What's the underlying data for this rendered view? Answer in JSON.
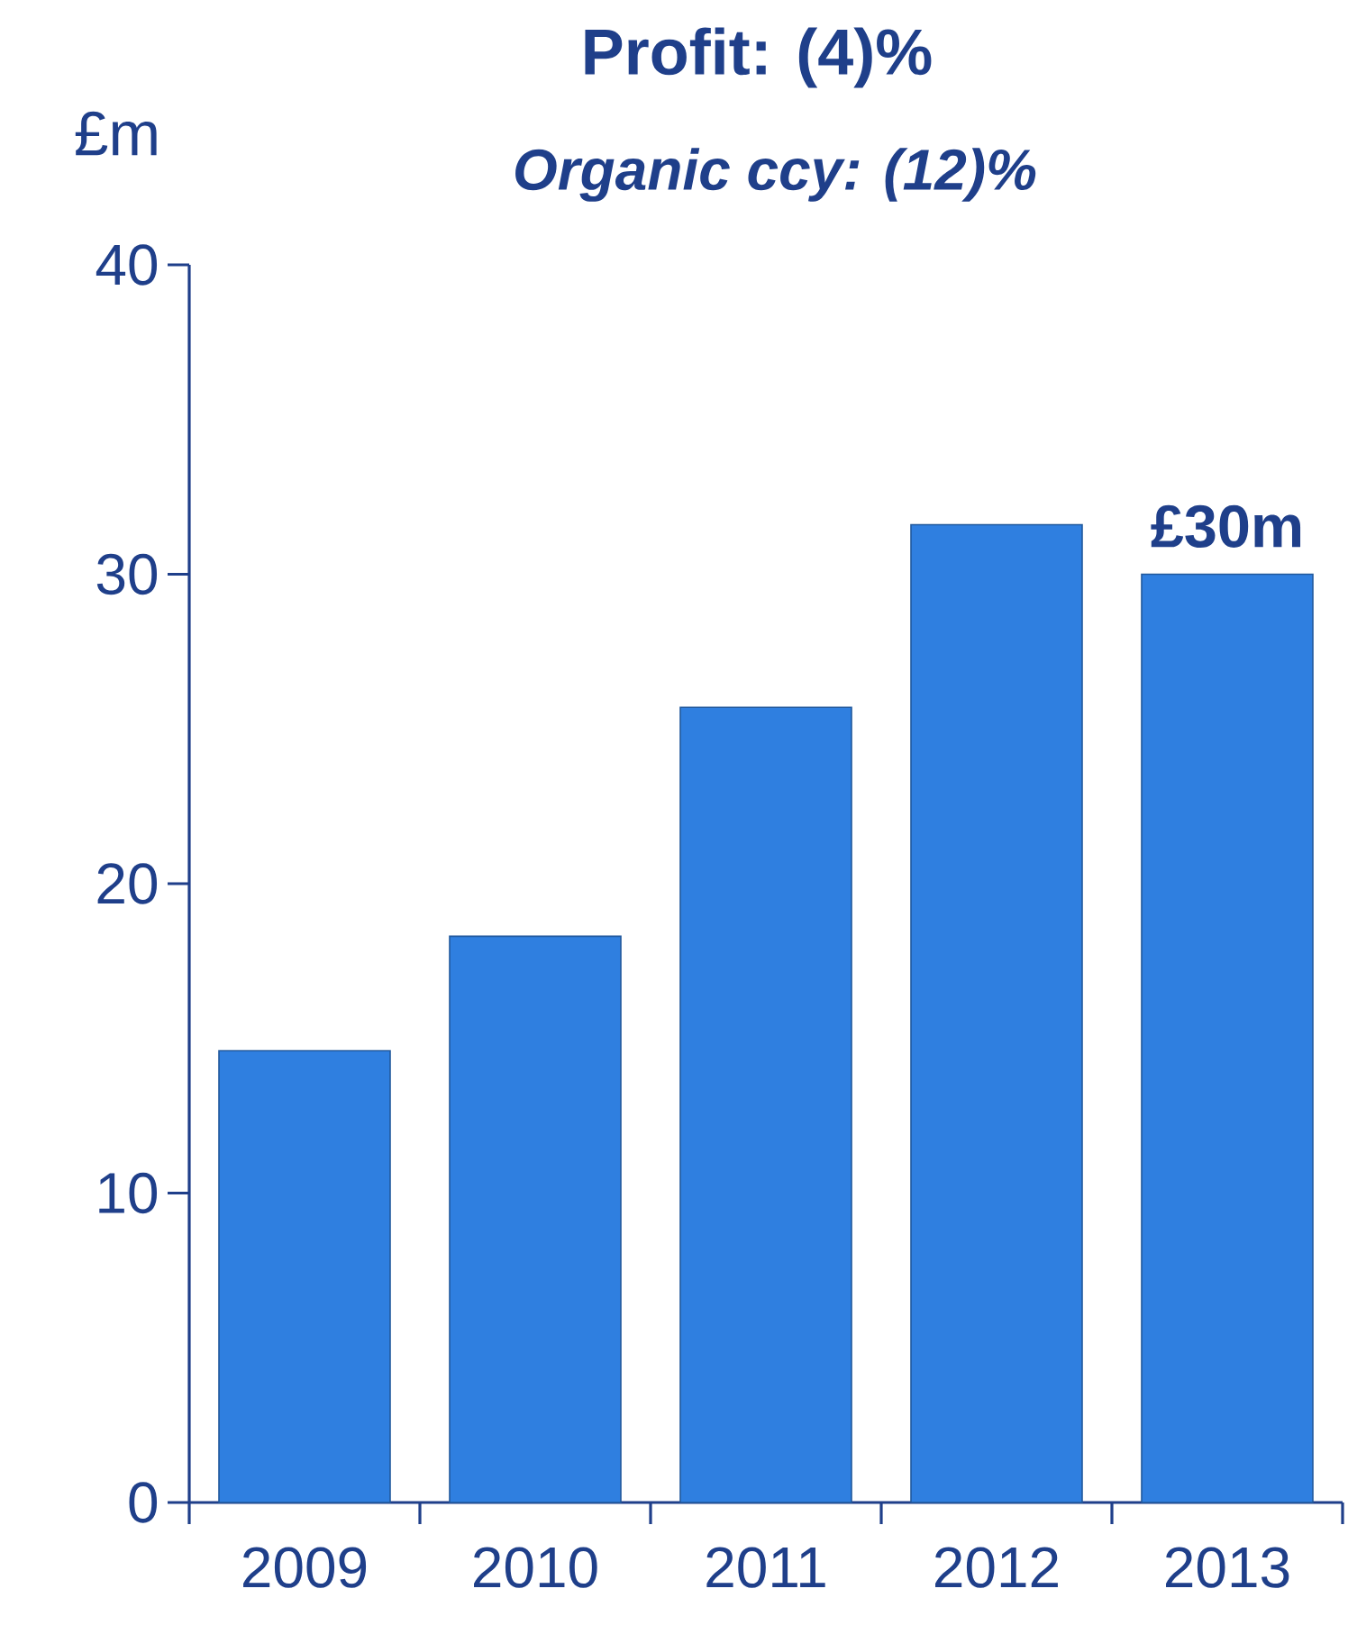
{
  "chart_data": {
    "type": "bar",
    "title": "Profit:          (4)%",
    "subtitle": "Organic ccy:  (12)%",
    "ylabel": "£m",
    "categories": [
      "2009",
      "2010",
      "2011",
      "2012",
      "2013"
    ],
    "values": [
      14.6,
      18.3,
      25.7,
      31.6,
      30.0
    ],
    "value_labels": [
      null,
      null,
      null,
      null,
      "£30m"
    ],
    "color": "#2f7fe0",
    "ylim": [
      0,
      40
    ],
    "yticks": [
      0,
      10,
      20,
      30,
      40
    ],
    "grid": false
  }
}
